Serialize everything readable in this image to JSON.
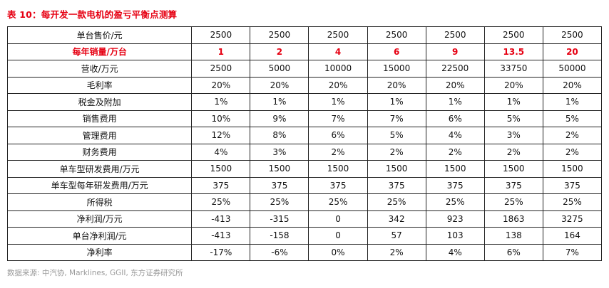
{
  "title": {
    "text": "表 10：每开发一款电机的盈亏平衡点测算"
  },
  "table": {
    "rows": [
      {
        "label": "单台售价/元",
        "highlight": false,
        "values": [
          "2500",
          "2500",
          "2500",
          "2500",
          "2500",
          "2500",
          "2500"
        ]
      },
      {
        "label": "每年销量/万台",
        "highlight": true,
        "values": [
          "1",
          "2",
          "4",
          "6",
          "9",
          "13.5",
          "20"
        ]
      },
      {
        "label": "营收/万元",
        "highlight": false,
        "values": [
          "2500",
          "5000",
          "10000",
          "15000",
          "22500",
          "33750",
          "50000"
        ]
      },
      {
        "label": "毛利率",
        "highlight": false,
        "values": [
          "20%",
          "20%",
          "20%",
          "20%",
          "20%",
          "20%",
          "20%"
        ]
      },
      {
        "label": "税金及附加",
        "highlight": false,
        "values": [
          "1%",
          "1%",
          "1%",
          "1%",
          "1%",
          "1%",
          "1%"
        ]
      },
      {
        "label": "销售费用",
        "highlight": false,
        "values": [
          "10%",
          "9%",
          "7%",
          "7%",
          "6%",
          "5%",
          "5%"
        ]
      },
      {
        "label": "管理费用",
        "highlight": false,
        "values": [
          "12%",
          "8%",
          "6%",
          "5%",
          "4%",
          "3%",
          "2%"
        ]
      },
      {
        "label": "财务费用",
        "highlight": false,
        "values": [
          "4%",
          "3%",
          "2%",
          "2%",
          "2%",
          "2%",
          "2%"
        ]
      },
      {
        "label": "单车型研发费用/万元",
        "highlight": false,
        "values": [
          "1500",
          "1500",
          "1500",
          "1500",
          "1500",
          "1500",
          "1500"
        ]
      },
      {
        "label": "单车型每年研发费用/万元",
        "highlight": false,
        "values": [
          "375",
          "375",
          "375",
          "375",
          "375",
          "375",
          "375"
        ]
      },
      {
        "label": "所得税",
        "highlight": false,
        "values": [
          "25%",
          "25%",
          "25%",
          "25%",
          "25%",
          "25%",
          "25%"
        ]
      },
      {
        "label": "净利润/万元",
        "highlight": false,
        "values": [
          "-413",
          "-315",
          "0",
          "342",
          "923",
          "1863",
          "3275"
        ]
      },
      {
        "label": "单台净利润/元",
        "highlight": false,
        "values": [
          "-413",
          "-158",
          "0",
          "57",
          "103",
          "138",
          "164"
        ]
      },
      {
        "label": "净利率",
        "highlight": false,
        "values": [
          "-17%",
          "-6%",
          "0%",
          "2%",
          "4%",
          "6%",
          "7%"
        ]
      }
    ]
  },
  "footer": {
    "text": "数据来源: 中汽协, Marklines, GGII, 东方证券研究所"
  },
  "colors": {
    "accent_red": "#e60012",
    "text": "#111111",
    "muted": "#9b9b9b",
    "border": "#222222"
  }
}
